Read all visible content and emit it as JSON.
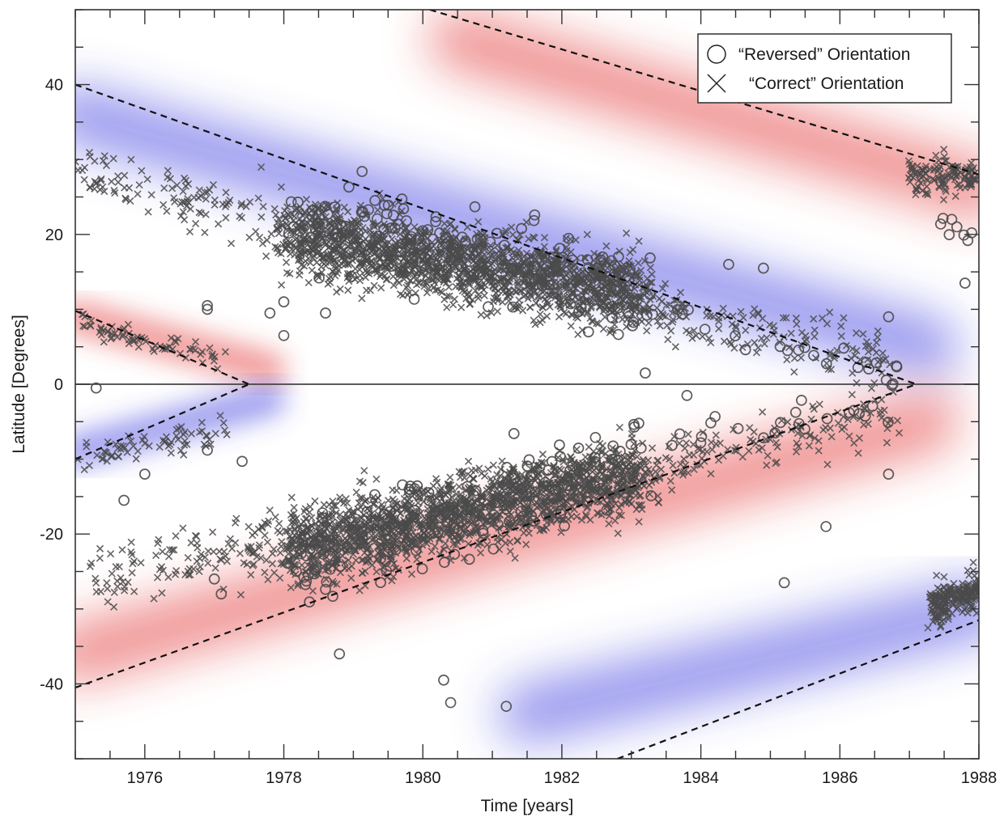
{
  "chart_data": {
    "type": "scatter",
    "title": "",
    "xlabel": "Time [years]",
    "ylabel": "Latitude [Degrees]",
    "xlim": [
      1975.0,
      1988.0
    ],
    "ylim": [
      -50,
      50
    ],
    "x_ticks": [
      1976,
      1978,
      1980,
      1982,
      1984,
      1986,
      1988
    ],
    "y_ticks": [
      40,
      20,
      0,
      -20,
      -40
    ],
    "grid": false,
    "legend_position": "top-right",
    "legend": [
      {
        "marker": "circle",
        "label": "“Reversed” Orientation"
      },
      {
        "marker": "cross",
        "label": "“Correct” Orientation"
      }
    ],
    "equator_line": 0,
    "colors": {
      "blue_band": "#3a3ae0",
      "red_band": "#e23030",
      "marker": "#4a4a4a",
      "dashed": "#111111",
      "axis": "#333333"
    },
    "color_bands": [
      {
        "color": "blue",
        "x": [
          1975.0,
          1987.3
        ],
        "y": [
          36,
          5
        ]
      },
      {
        "color": "red",
        "x": [
          1975.0,
          1987.3
        ],
        "y": [
          -36,
          -5
        ]
      },
      {
        "color": "red",
        "x": [
          1975.0,
          1977.8
        ],
        "y": [
          9,
          2
        ]
      },
      {
        "color": "blue",
        "x": [
          1975.0,
          1977.8
        ],
        "y": [
          -9,
          -2
        ]
      },
      {
        "color": "red",
        "x": [
          1980.5,
          1988.0
        ],
        "y": [
          46,
          26
        ]
      },
      {
        "color": "blue",
        "x": [
          1981.5,
          1988.0
        ],
        "y": [
          -44,
          -30
        ]
      }
    ],
    "dashed_lines": [
      {
        "x": [
          1975.0,
          1987.1
        ],
        "y": [
          40,
          0
        ]
      },
      {
        "x": [
          1975.0,
          1987.1
        ],
        "y": [
          -40.5,
          0
        ]
      },
      {
        "x": [
          1975.0,
          1977.5
        ],
        "y": [
          9.8,
          0
        ]
      },
      {
        "x": [
          1975.0,
          1977.5
        ],
        "y": [
          -10,
          0
        ]
      },
      {
        "x": [
          1980.1,
          1988.0
        ],
        "y": [
          50,
          28
        ]
      },
      {
        "x": [
          1982.8,
          1988.0
        ],
        "y": [
          -50,
          -31.5
        ]
      }
    ],
    "series": [
      {
        "marker": "cross",
        "clusters": [
          {
            "x": [
              1978.0,
              1983.2
            ],
            "y": [
              20,
              12
            ],
            "n": 1500,
            "sx": 1.0,
            "sy": 6.0
          },
          {
            "x": [
              1978.0,
              1983.2
            ],
            "y": [
              -22,
              -12
            ],
            "n": 1500,
            "sx": 1.0,
            "sy": 6.0
          },
          {
            "x": [
              1975.0,
              1986.8
            ],
            "y": [
              28,
              3
            ],
            "n": 450,
            "sx": 0.4,
            "sy": 4.5
          },
          {
            "x": [
              1975.2,
              1986.8
            ],
            "y": [
              -26,
              -4
            ],
            "n": 450,
            "sx": 0.4,
            "sy": 4.5
          },
          {
            "x": [
              1975.1,
              1977.2
            ],
            "y": [
              8,
              3
            ],
            "n": 70,
            "sx": 0.3,
            "sy": 2.0
          },
          {
            "x": [
              1975.1,
              1977.2
            ],
            "y": [
              -10,
              -6
            ],
            "n": 70,
            "sx": 0.3,
            "sy": 2.0
          },
          {
            "x": [
              1987.0,
              1988.0
            ],
            "y": [
              28,
              28
            ],
            "n": 130,
            "sx": 0.2,
            "sy": 3.0
          },
          {
            "x": [
              1987.3,
              1988.0
            ],
            "y": [
              -30,
              -27
            ],
            "n": 200,
            "sx": 0.15,
            "sy": 3.0
          }
        ]
      },
      {
        "marker": "circle",
        "clusters": [
          {
            "x": [
              1978.0,
              1983.2
            ],
            "y": [
              24,
              12
            ],
            "n": 160,
            "sx": 1.0,
            "sy": 7.0
          },
          {
            "x": [
              1978.2,
              1983.2
            ],
            "y": [
              -24,
              -10
            ],
            "n": 160,
            "sx": 1.0,
            "sy": 7.0
          },
          {
            "x": [
              1983.5,
              1986.9
            ],
            "y": [
              10,
              1
            ],
            "n": 20,
            "sx": 0.4,
            "sy": 3.0
          },
          {
            "x": [
              1983.5,
              1986.9
            ],
            "y": [
              -8,
              -2
            ],
            "n": 22,
            "sx": 0.4,
            "sy": 4.0
          },
          {
            "x": [
              1987.3,
              1987.9
            ],
            "y": [
              22,
              20
            ],
            "n": 8,
            "sx": 0.15,
            "sy": 2.0
          }
        ]
      }
    ],
    "points": [
      {
        "x": 1975.3,
        "y": -0.5,
        "marker": "circle"
      },
      {
        "x": 1976.0,
        "y": -12,
        "marker": "circle"
      },
      {
        "x": 1975.7,
        "y": -15.5,
        "marker": "circle"
      },
      {
        "x": 1976.9,
        "y": 10.5,
        "marker": "circle"
      },
      {
        "x": 1976.9,
        "y": 10,
        "marker": "circle"
      },
      {
        "x": 1977.0,
        "y": -26,
        "marker": "circle"
      },
      {
        "x": 1977.1,
        "y": -28,
        "marker": "circle"
      },
      {
        "x": 1977.8,
        "y": 9.5,
        "marker": "circle"
      },
      {
        "x": 1978.0,
        "y": 6.5,
        "marker": "circle"
      },
      {
        "x": 1978.0,
        "y": 11,
        "marker": "circle"
      },
      {
        "x": 1978.6,
        "y": 9.5,
        "marker": "circle"
      },
      {
        "x": 1978.8,
        "y": -36,
        "marker": "circle"
      },
      {
        "x": 1980.3,
        "y": -39.5,
        "marker": "circle"
      },
      {
        "x": 1981.2,
        "y": -43,
        "marker": "circle"
      },
      {
        "x": 1983.2,
        "y": 1.5,
        "marker": "circle"
      },
      {
        "x": 1983.8,
        "y": -1.5,
        "marker": "circle"
      },
      {
        "x": 1984.4,
        "y": 16,
        "marker": "circle"
      },
      {
        "x": 1984.9,
        "y": 15.5,
        "marker": "circle"
      },
      {
        "x": 1985.2,
        "y": -26.5,
        "marker": "circle"
      },
      {
        "x": 1985.8,
        "y": -19,
        "marker": "circle"
      },
      {
        "x": 1986.2,
        "y": -3.5,
        "marker": "circle"
      },
      {
        "x": 1986.7,
        "y": -12,
        "marker": "circle"
      },
      {
        "x": 1986.7,
        "y": 9,
        "marker": "circle"
      },
      {
        "x": 1987.8,
        "y": 13.5,
        "marker": "circle"
      },
      {
        "x": 1976.9,
        "y": -8.8,
        "marker": "circle"
      },
      {
        "x": 1977.4,
        "y": -10.3,
        "marker": "circle"
      },
      {
        "x": 1980.4,
        "y": -42.5,
        "marker": "circle"
      }
    ]
  }
}
